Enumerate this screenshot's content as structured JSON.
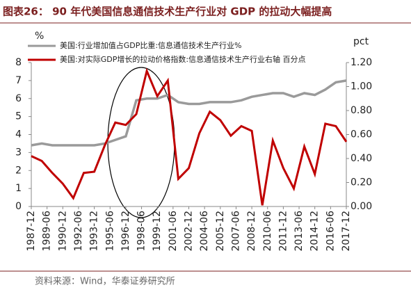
{
  "chart_data": {
    "type": "line",
    "title": "图表26：  90 年代美国信息通信技术生产行业对 GDP 的拉动大幅提高",
    "y_label": "%",
    "y2_label": "pct",
    "source": "资料来源：Wind，华泰证券研究所",
    "x": [
      "1987-12",
      "1988-12",
      "1989-12",
      "1990-12",
      "1991-12",
      "1992-12",
      "1993-12",
      "1994-12",
      "1995-12",
      "1996-12",
      "1997-12",
      "1998-12",
      "1999-12",
      "2000-12",
      "2001-12",
      "2002-12",
      "2003-12",
      "2004-12",
      "2005-12",
      "2006-12",
      "2007-12",
      "2008-12",
      "2009-12",
      "2010-12",
      "2011-12",
      "2012-12",
      "2013-12",
      "2014-12",
      "2015-12",
      "2016-12",
      "2017-12"
    ],
    "xticks": [
      "1987-12",
      "1989-06",
      "1990-12",
      "1992-06",
      "1993-12",
      "1995-06",
      "1996-12",
      "1998-06",
      "1999-12",
      "2001-06",
      "2002-12",
      "2004-06",
      "2005-12",
      "2007-06",
      "2008-12",
      "2010-06",
      "2011-12",
      "2013-06",
      "2014-12",
      "2016-06",
      "2017-12"
    ],
    "ylim": [
      0,
      8
    ],
    "yticks": [
      0,
      1,
      2,
      3,
      4,
      5,
      6,
      7,
      8
    ],
    "y2lim": [
      0,
      1.2
    ],
    "y2ticks": [
      {
        "value": 0,
        "label": "0.00"
      },
      {
        "value": 0.2,
        "label": "0.20"
      },
      {
        "value": 0.4,
        "label": "0.40"
      },
      {
        "value": 0.6,
        "label": "0.60"
      },
      {
        "value": 0.8,
        "label": "0.80"
      },
      {
        "value": 1.0,
        "label": "1.00"
      },
      {
        "value": 1.2,
        "label": "1.20"
      }
    ],
    "series": [
      {
        "name": "美国:行业增加值占GDP比重:信息通信技术生产行业%",
        "color": "#9a9a9a",
        "values": [
          3.4,
          3.5,
          3.4,
          3.4,
          3.4,
          3.4,
          3.4,
          3.5,
          3.7,
          3.9,
          5.9,
          6.0,
          6.0,
          6.2,
          5.8,
          5.7,
          5.7,
          5.8,
          5.8,
          5.8,
          5.9,
          6.1,
          6.2,
          6.3,
          6.3,
          6.1,
          6.3,
          6.2,
          6.5,
          6.9,
          7.0
        ]
      },
      {
        "name": "美国:对实际GDP增长的拉动价格指数:信息通信技术生产行业右轴 百分点",
        "color": "#c00000",
        "axis": "y2",
        "values": [
          0.42,
          0.38,
          0.28,
          0.19,
          0.07,
          0.28,
          0.29,
          0.51,
          0.7,
          0.68,
          0.77,
          1.13,
          0.92,
          1.05,
          0.23,
          0.32,
          0.61,
          0.79,
          0.72,
          0.59,
          0.67,
          0.63,
          0.01,
          0.55,
          0.32,
          0.15,
          0.5,
          0.27,
          0.69,
          0.67,
          0.54
        ]
      }
    ]
  }
}
